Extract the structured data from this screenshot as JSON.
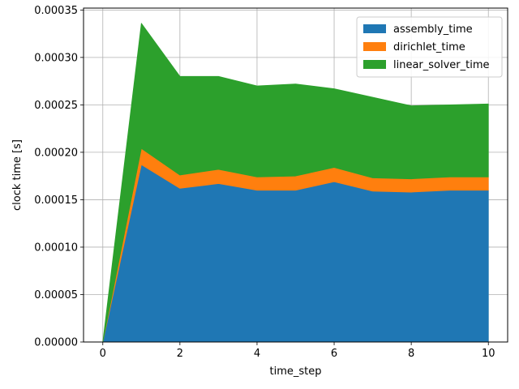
{
  "chart_data": {
    "type": "area",
    "stacked": true,
    "title": "",
    "xlabel": "time_step",
    "ylabel": "clock time [s]",
    "x": [
      0,
      1,
      2,
      3,
      4,
      5,
      6,
      7,
      8,
      9,
      10
    ],
    "xlim": [
      -0.5,
      10.5
    ],
    "ylim": [
      0,
      0.000352
    ],
    "xticks": [
      0,
      2,
      4,
      6,
      8,
      10
    ],
    "xtick_labels": [
      "0",
      "2",
      "4",
      "6",
      "8",
      "10"
    ],
    "yticks": [
      0,
      5e-05,
      0.0001,
      0.00015,
      0.0002,
      0.00025,
      0.0003,
      0.00035
    ],
    "ytick_labels": [
      "0.00000",
      "0.00005",
      "0.00010",
      "0.00015",
      "0.00020",
      "0.00025",
      "0.00030",
      "0.00035"
    ],
    "grid": true,
    "legend_position": "top-right",
    "series": [
      {
        "name": "assembly_time",
        "color": "#1f77b4",
        "values": [
          0,
          0.000187,
          0.000162,
          0.000167,
          0.00016,
          0.00016,
          0.000169,
          0.000159,
          0.000158,
          0.00016,
          0.00016
        ]
      },
      {
        "name": "dirichlet_time",
        "color": "#ff7f0e",
        "values": [
          0,
          1.7e-05,
          1.4e-05,
          1.5e-05,
          1.4e-05,
          1.5e-05,
          1.5e-05,
          1.4e-05,
          1.4e-05,
          1.4e-05,
          1.4e-05
        ]
      },
      {
        "name": "linear_solver_time",
        "color": "#2ca02c",
        "values": [
          0,
          0.000132,
          0.000104,
          9.8e-05,
          9.6e-05,
          9.7e-05,
          8.3e-05,
          8.5e-05,
          7.7e-05,
          7.6e-05,
          7.7e-05
        ]
      }
    ]
  }
}
